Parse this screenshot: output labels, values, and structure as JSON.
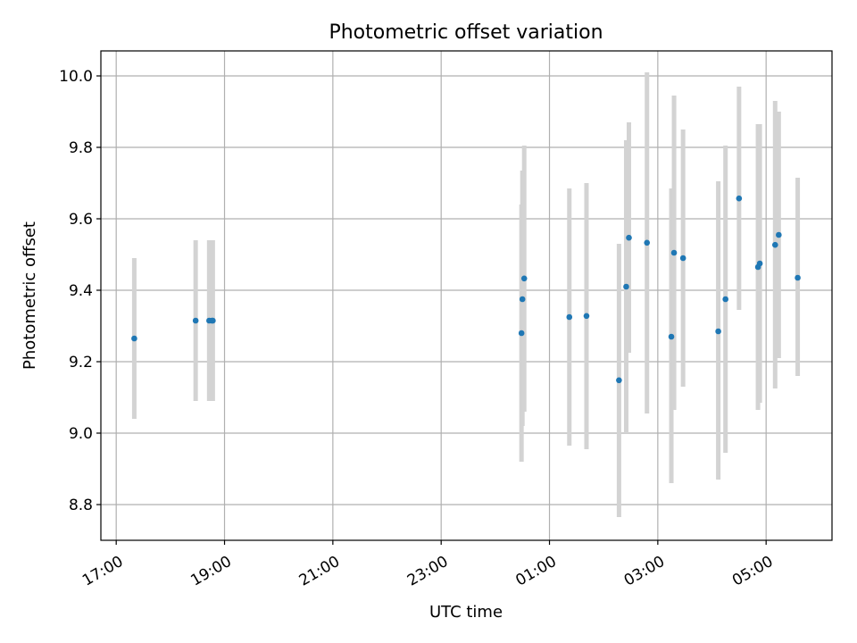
{
  "chart_data": {
    "type": "scatter",
    "title": "Photometric offset variation",
    "xlabel": "UTC time",
    "ylabel": "Photometric offset",
    "x_axis": {
      "type": "time",
      "range": [
        "16:43",
        "06:13"
      ],
      "ticks": [
        "17:00",
        "19:00",
        "21:00",
        "23:00",
        "01:00",
        "03:00",
        "05:00"
      ]
    },
    "y_axis": {
      "range": [
        8.7,
        10.07
      ],
      "ticks": [
        "8.8",
        "9.0",
        "9.2",
        "9.4",
        "9.6",
        "9.8",
        "10.0"
      ]
    },
    "grid": true,
    "colors": {
      "point": "#1f77b4",
      "errorbar": "#d3d3d3",
      "grid": "#b0b0b0"
    },
    "points": [
      {
        "t": "17:20",
        "y": 9.265,
        "lo": 9.04,
        "hi": 9.49
      },
      {
        "t": "18:28",
        "y": 9.315,
        "lo": 9.09,
        "hi": 9.54
      },
      {
        "t": "18:43",
        "y": 9.315,
        "lo": 9.09,
        "hi": 9.54
      },
      {
        "t": "18:46",
        "y": 9.315,
        "lo": 9.09,
        "hi": 9.54
      },
      {
        "t": "18:47",
        "y": 9.315,
        "lo": 9.09,
        "hi": 9.54
      },
      {
        "t": "00:29",
        "y": 9.28,
        "lo": 8.92,
        "hi": 9.64
      },
      {
        "t": "00:30",
        "y": 9.375,
        "lo": 9.02,
        "hi": 9.735
      },
      {
        "t": "00:32",
        "y": 9.433,
        "lo": 9.06,
        "hi": 9.805
      },
      {
        "t": "01:22",
        "y": 9.325,
        "lo": 8.965,
        "hi": 9.685
      },
      {
        "t": "01:41",
        "y": 9.328,
        "lo": 8.955,
        "hi": 9.7
      },
      {
        "t": "02:17",
        "y": 9.148,
        "lo": 8.765,
        "hi": 9.53
      },
      {
        "t": "02:25",
        "y": 9.41,
        "lo": 9.0,
        "hi": 9.82
      },
      {
        "t": "02:28",
        "y": 9.547,
        "lo": 9.225,
        "hi": 9.87
      },
      {
        "t": "02:48",
        "y": 9.533,
        "lo": 9.055,
        "hi": 10.01
      },
      {
        "t": "03:15",
        "y": 9.27,
        "lo": 8.86,
        "hi": 9.685
      },
      {
        "t": "03:18",
        "y": 9.505,
        "lo": 9.065,
        "hi": 9.945
      },
      {
        "t": "03:28",
        "y": 9.49,
        "lo": 9.13,
        "hi": 9.85
      },
      {
        "t": "04:07",
        "y": 9.285,
        "lo": 8.87,
        "hi": 9.705
      },
      {
        "t": "04:15",
        "y": 9.375,
        "lo": 8.945,
        "hi": 9.805
      },
      {
        "t": "04:30",
        "y": 9.657,
        "lo": 9.345,
        "hi": 9.97
      },
      {
        "t": "04:51",
        "y": 9.465,
        "lo": 9.065,
        "hi": 9.865
      },
      {
        "t": "04:53",
        "y": 9.475,
        "lo": 9.085,
        "hi": 9.865
      },
      {
        "t": "05:10",
        "y": 9.527,
        "lo": 9.125,
        "hi": 9.93
      },
      {
        "t": "05:14",
        "y": 9.555,
        "lo": 9.21,
        "hi": 9.9
      },
      {
        "t": "05:35",
        "y": 9.435,
        "lo": 9.16,
        "hi": 9.715
      }
    ]
  }
}
